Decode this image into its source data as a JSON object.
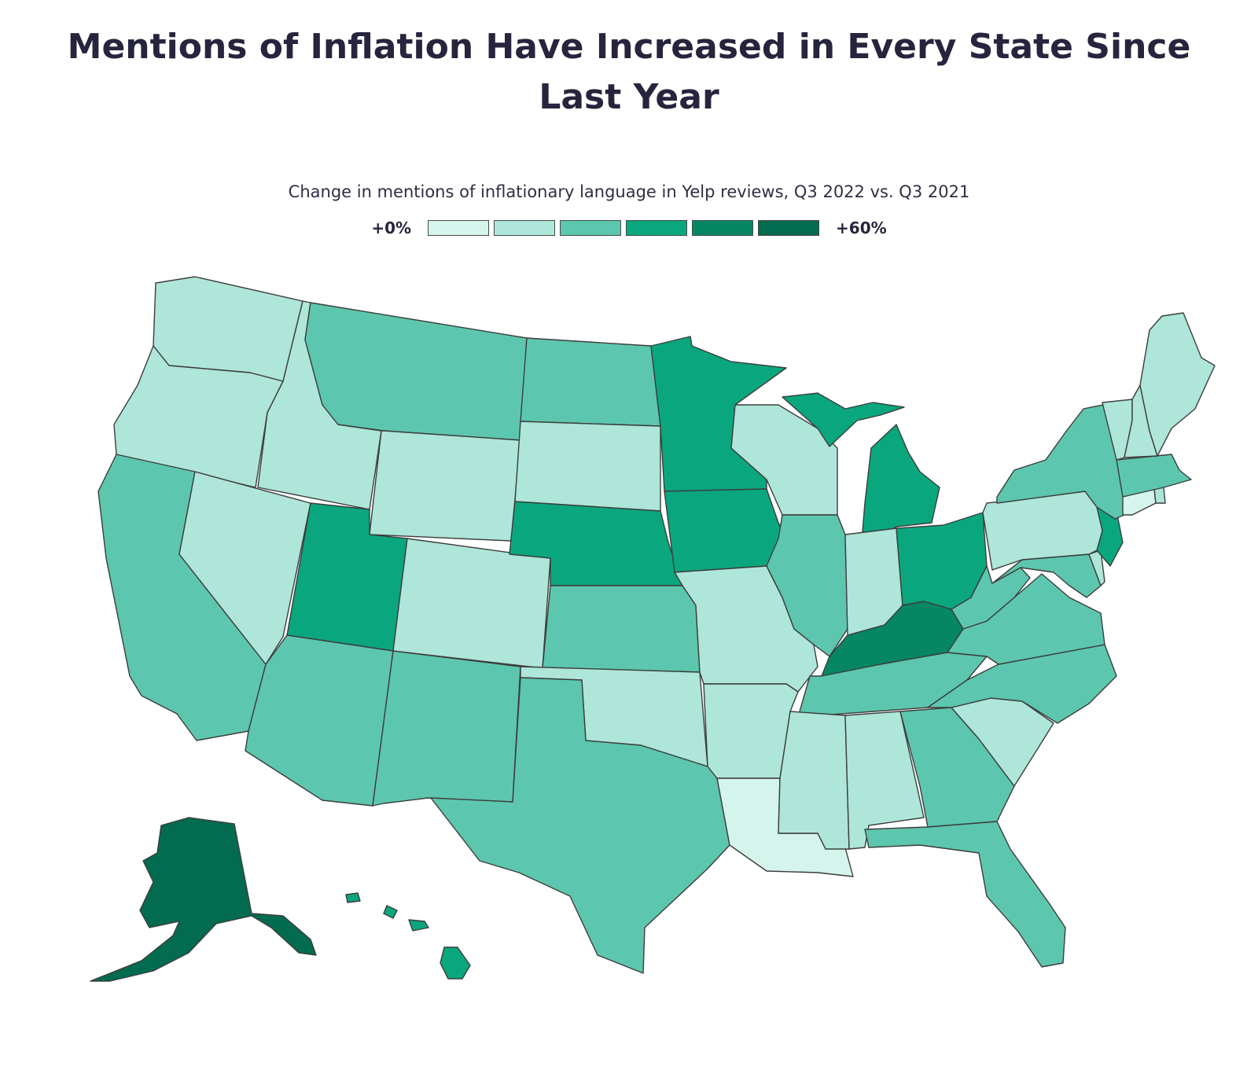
{
  "title": "Mentions of Inflation Have Increased in Every State Since Last Year",
  "subtitle": "Change in mentions of inflationary language in Yelp reviews, Q3 2022 vs. Q3 2021",
  "legend": {
    "min_label": "+0%",
    "max_label": "+60%",
    "colors": [
      "#d4f4ec",
      "#aee6d9",
      "#5cc7ae",
      "#0aa77e",
      "#068663",
      "#036b4f"
    ]
  },
  "chart_data": {
    "type": "choropleth",
    "title": "Mentions of Inflation Have Increased in Every State Since Last Year",
    "subtitle": "Change in mentions of inflationary language in Yelp reviews, Q3 2022 vs. Q3 2021",
    "scale": {
      "min": 0,
      "max": 60,
      "unit": "%",
      "bins": 6
    },
    "states": [
      {
        "state": "WA",
        "bin": 2
      },
      {
        "state": "OR",
        "bin": 2
      },
      {
        "state": "CA",
        "bin": 3
      },
      {
        "state": "NV",
        "bin": 2
      },
      {
        "state": "ID",
        "bin": 2
      },
      {
        "state": "MT",
        "bin": 3
      },
      {
        "state": "WY",
        "bin": 2
      },
      {
        "state": "UT",
        "bin": 4
      },
      {
        "state": "AZ",
        "bin": 3
      },
      {
        "state": "CO",
        "bin": 2
      },
      {
        "state": "NM",
        "bin": 3
      },
      {
        "state": "ND",
        "bin": 3
      },
      {
        "state": "SD",
        "bin": 2
      },
      {
        "state": "NE",
        "bin": 4
      },
      {
        "state": "KS",
        "bin": 3
      },
      {
        "state": "OK",
        "bin": 2
      },
      {
        "state": "TX",
        "bin": 3
      },
      {
        "state": "MN",
        "bin": 4
      },
      {
        "state": "IA",
        "bin": 4
      },
      {
        "state": "MO",
        "bin": 2
      },
      {
        "state": "AR",
        "bin": 2
      },
      {
        "state": "LA",
        "bin": 1
      },
      {
        "state": "WI",
        "bin": 2
      },
      {
        "state": "IL",
        "bin": 3
      },
      {
        "state": "MI",
        "bin": 4
      },
      {
        "state": "IN",
        "bin": 2
      },
      {
        "state": "OH",
        "bin": 4
      },
      {
        "state": "KY",
        "bin": 5
      },
      {
        "state": "TN",
        "bin": 3
      },
      {
        "state": "MS",
        "bin": 2
      },
      {
        "state": "AL",
        "bin": 2
      },
      {
        "state": "GA",
        "bin": 3
      },
      {
        "state": "FL",
        "bin": 3
      },
      {
        "state": "SC",
        "bin": 2
      },
      {
        "state": "NC",
        "bin": 3
      },
      {
        "state": "VA",
        "bin": 3
      },
      {
        "state": "WV",
        "bin": 3
      },
      {
        "state": "MD",
        "bin": 3
      },
      {
        "state": "DE",
        "bin": 2
      },
      {
        "state": "NJ",
        "bin": 4
      },
      {
        "state": "PA",
        "bin": 2
      },
      {
        "state": "NY",
        "bin": 3
      },
      {
        "state": "CT",
        "bin": 1
      },
      {
        "state": "RI",
        "bin": 2
      },
      {
        "state": "MA",
        "bin": 3
      },
      {
        "state": "VT",
        "bin": 2
      },
      {
        "state": "NH",
        "bin": 2
      },
      {
        "state": "ME",
        "bin": 2
      },
      {
        "state": "AK",
        "bin": 6
      },
      {
        "state": "HI",
        "bin": 4
      }
    ]
  }
}
